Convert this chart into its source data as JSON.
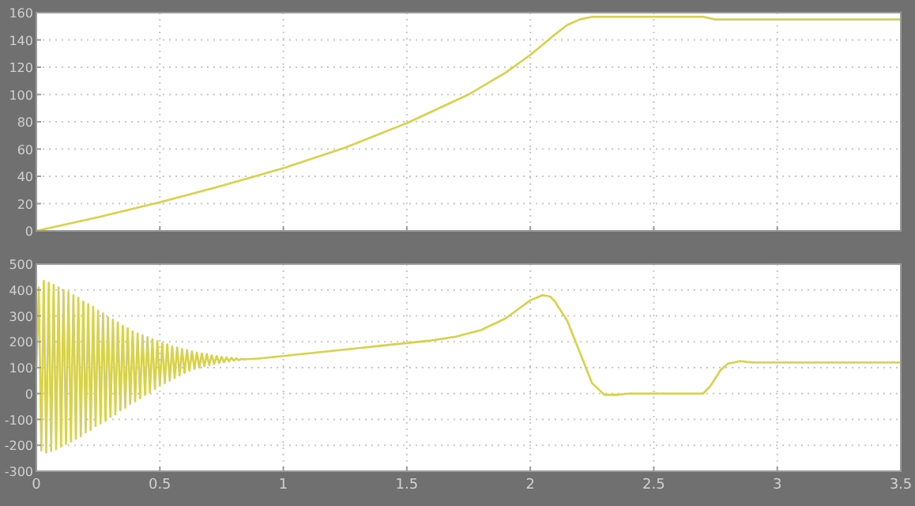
{
  "chart_data": [
    {
      "type": "line",
      "x": [
        0,
        0.25,
        0.5,
        0.75,
        1.0,
        1.25,
        1.5,
        1.75,
        1.9,
        2.0,
        2.1,
        2.15,
        2.2,
        2.25,
        2.7,
        2.75,
        3.5
      ],
      "series": [
        {
          "color": "#d8d24a",
          "values": [
            0,
            10,
            21,
            33,
            46,
            61,
            79,
            100,
            116,
            129,
            144,
            151,
            155,
            157,
            157,
            155,
            155
          ]
        }
      ],
      "xlim": [
        0,
        3.5
      ],
      "xticks": [
        0,
        0.5,
        1,
        1.5,
        2,
        2.5,
        3,
        3.5
      ],
      "ylim": [
        0,
        160
      ],
      "yticks": [
        0,
        20,
        40,
        60,
        80,
        100,
        120,
        140,
        160
      ],
      "grid": true,
      "tick_labels": "y",
      "line_style": "solid"
    },
    {
      "type": "line",
      "x": [
        0,
        0.01,
        0.02,
        0.03,
        0.04,
        0.05,
        0.06,
        0.07,
        0.08,
        0.09,
        0.1,
        0.11,
        0.12,
        0.13,
        0.14,
        0.15,
        0.16,
        0.17,
        0.18,
        0.19,
        0.2,
        0.21,
        0.22,
        0.23,
        0.24,
        0.25,
        0.26,
        0.27,
        0.28,
        0.29,
        0.3,
        0.31,
        0.32,
        0.33,
        0.34,
        0.35,
        0.36,
        0.37,
        0.38,
        0.39,
        0.4,
        0.41,
        0.42,
        0.43,
        0.44,
        0.45,
        0.46,
        0.47,
        0.48,
        0.49,
        0.5,
        0.51,
        0.52,
        0.53,
        0.54,
        0.55,
        0.56,
        0.57,
        0.58,
        0.59,
        0.6,
        0.61,
        0.62,
        0.63,
        0.64,
        0.65,
        0.66,
        0.67,
        0.68,
        0.69,
        0.7,
        0.71,
        0.72,
        0.73,
        0.74,
        0.75,
        0.76,
        0.77,
        0.78,
        0.79,
        0.8,
        0.81,
        0.82,
        0.83,
        0.84,
        0.85,
        0.9,
        1.0,
        1.1,
        1.2,
        1.3,
        1.4,
        1.5,
        1.6,
        1.7,
        1.8,
        1.9,
        1.95,
        2.0,
        2.05,
        2.08,
        2.1,
        2.15,
        2.2,
        2.25,
        2.3,
        2.35,
        2.4,
        2.5,
        2.6,
        2.7,
        2.73,
        2.77,
        2.8,
        2.85,
        2.9,
        3.0,
        3.5
      ],
      "series": [
        {
          "color": "#d8d24a",
          "values": [
            100,
            410,
            -220,
            435,
            -228,
            428,
            -222,
            420,
            -215,
            410,
            -205,
            400,
            -195,
            392,
            -185,
            380,
            -175,
            370,
            -165,
            355,
            -150,
            345,
            -140,
            335,
            -125,
            320,
            -115,
            310,
            -105,
            295,
            -90,
            285,
            -80,
            275,
            -65,
            262,
            -55,
            252,
            -40,
            240,
            -30,
            232,
            -18,
            225,
            -5,
            218,
            5,
            210,
            18,
            202,
            30,
            195,
            40,
            190,
            50,
            182,
            60,
            178,
            70,
            172,
            80,
            168,
            88,
            163,
            95,
            158,
            100,
            155,
            105,
            152,
            110,
            148,
            114,
            145,
            118,
            142,
            121,
            140,
            124,
            138,
            127,
            136,
            129,
            134,
            131,
            133,
            135,
            145,
            155,
            165,
            175,
            185,
            195,
            205,
            220,
            245,
            290,
            325,
            360,
            380,
            375,
            355,
            280,
            160,
            40,
            -5,
            -5,
            0,
            0,
            0,
            0,
            30,
            90,
            115,
            125,
            120,
            120,
            120
          ]
        }
      ],
      "xlim": [
        0,
        3.5
      ],
      "xticks": [
        0,
        0.5,
        1,
        1.5,
        2,
        2.5,
        3,
        3.5
      ],
      "ylim": [
        -300,
        500
      ],
      "yticks": [
        -300,
        -200,
        -100,
        0,
        100,
        200,
        300,
        400,
        500
      ],
      "grid": true,
      "line_style": "solid"
    }
  ]
}
